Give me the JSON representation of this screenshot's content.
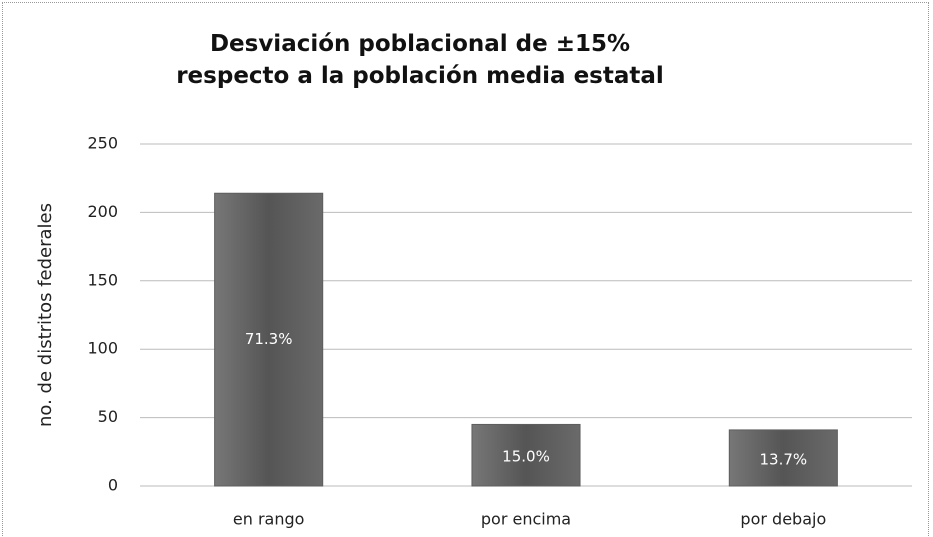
{
  "chart_data": {
    "type": "bar",
    "title": "Desviación poblacional de ±15% respecto a la población media estatal",
    "y_label": "no. de distritos federales",
    "categories": [
      "en rango",
      "por encima",
      "por debajo"
    ],
    "values": [
      214,
      45,
      41
    ],
    "bar_labels": [
      "71.3%",
      "15.0%",
      "13.7%"
    ],
    "color": "#5e5e5e",
    "ylim": [
      0,
      250
    ],
    "yticks": [
      0,
      50,
      100,
      150,
      200,
      250
    ],
    "grid": true
  }
}
